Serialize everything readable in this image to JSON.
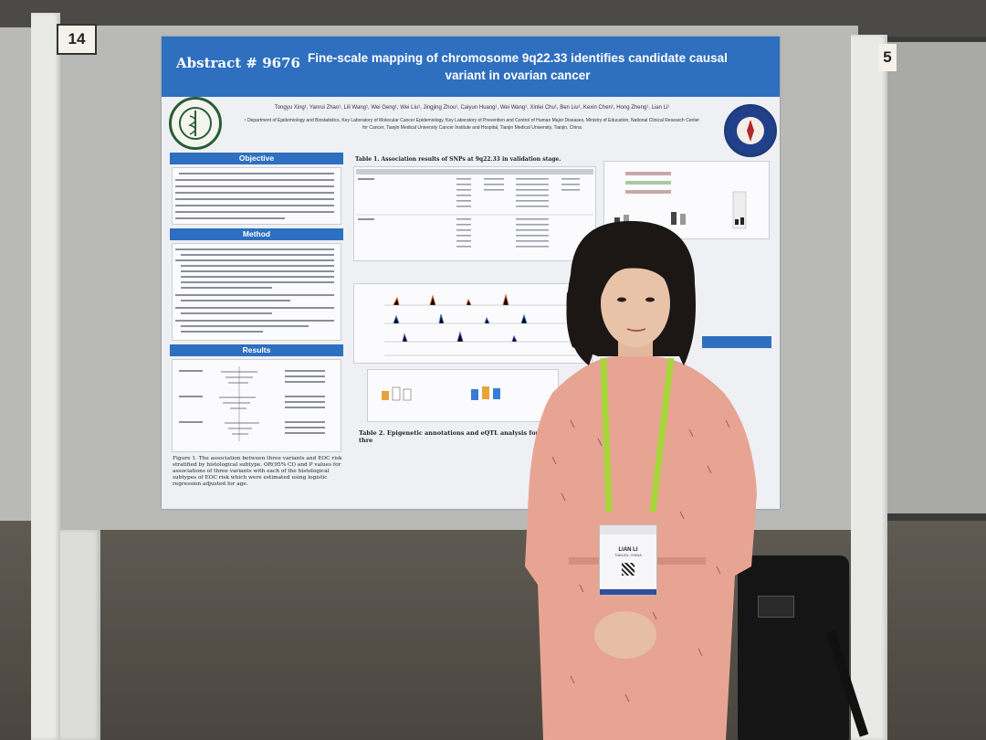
{
  "booth": {
    "left_number": "14",
    "right_number": "5"
  },
  "poster": {
    "abstract_label": "Abstract # 9676",
    "title": "Fine-scale mapping of chromosome 9q22.33 identifies candidate causal variant in ovarian cancer",
    "authors": "Tongyu Xing¹, Yanrui Zhao¹, Lili Wang¹, Wei Geng¹, Wei Liu¹, Jingjing Zhou¹, Caiyun Huang¹, Wei Wang¹, Xinlei Chu¹, Ben Liu¹, Kexin Chen¹, Hong Zheng¹, Lian Li¹",
    "affiliation": "¹ Department of Epidemiology and Biostatistics, Key Laboratory of Molecular Cancer Epidemiology, Key Laboratory of Prevention and Control of Human Major Diseases, Ministry of Education, National Clinical Research Center for Cancer, Tianjin Medical University Cancer Institute and Hospital, Tianjin Medical University, Tianjin, China",
    "sections": {
      "objective": "Objective",
      "method": "Method",
      "results": "Results"
    },
    "table1_title": "Table 1. Association results of SNPs at 9q22.33 in validation stage.",
    "figure1_caption": "Figure 1. The association between three variants and EOC risk stratified by histological subtype. OR(95% CI) and P values for associations of three variants with each of the histological subtypes of EOC risk which were estimated using logistic regression adjusted for age.",
    "figure2_caption": "Table 2. Epigenetic annotations and eQTL analysis for thre"
  },
  "badge": {
    "name": "LIAN LI",
    "location": "TIANJIN, CHINA"
  },
  "colors": {
    "banner": "#2e6fbf",
    "dress": "#e8a493",
    "lanyard": "#a6d63a"
  }
}
